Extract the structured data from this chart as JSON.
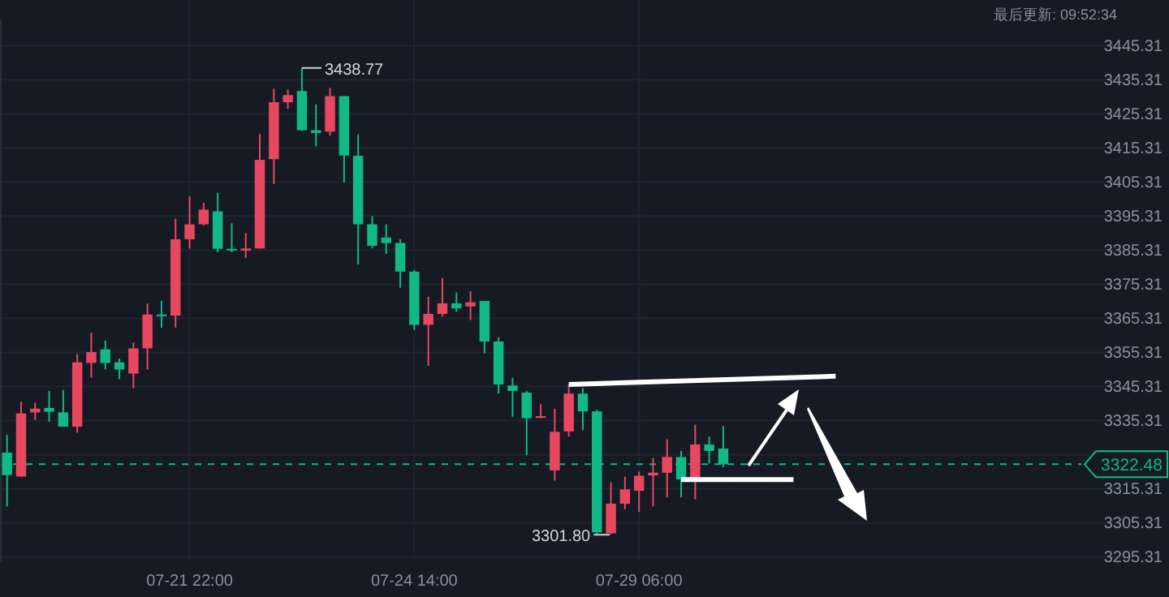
{
  "chart_data": {
    "type": "candlestick",
    "categories": [
      null,
      null,
      null,
      null,
      null,
      null,
      null,
      null,
      null,
      null,
      null,
      null,
      null,
      "07-21 22:00",
      null,
      null,
      null,
      null,
      null,
      null,
      null,
      null,
      null,
      null,
      null,
      null,
      null,
      null,
      null,
      "07-24 14:00",
      null,
      null,
      null,
      null,
      null,
      null,
      null,
      null,
      null,
      null,
      null,
      null,
      null,
      null,
      null,
      "07-29 06:00",
      null,
      null,
      null,
      null,
      null,
      null,
      null,
      null,
      null,
      null,
      null,
      null,
      null,
      null,
      null,
      null,
      null,
      null,
      null,
      null,
      null,
      null,
      null,
      null,
      null,
      null,
      null,
      null,
      null,
      null,
      null,
      null,
      null,
      null
    ],
    "ohlc": [
      [
        3325.9,
        3331.1,
        3310.1,
        3319.3
      ],
      [
        3318.9,
        3340.8,
        3318.8,
        3337.4
      ],
      [
        3337.7,
        3340.6,
        3335.5,
        3338.8
      ],
      [
        3339.0,
        3344.0,
        3334.9,
        3337.9
      ],
      [
        3337.7,
        3344.3,
        3333.5,
        3333.5
      ],
      [
        3333.5,
        3354.8,
        3331.7,
        3352.4
      ],
      [
        3352.2,
        3361.1,
        3347.9,
        3355.4
      ],
      [
        3356.2,
        3358.8,
        3350.3,
        3352.2
      ],
      [
        3352.4,
        3353.5,
        3347.5,
        3350.3
      ],
      [
        3349.1,
        3358.2,
        3344.8,
        3356.5
      ],
      [
        3356.5,
        3369.6,
        3350.3,
        3366.4
      ],
      [
        3366.4,
        3370.4,
        3362.5,
        3365.9
      ],
      [
        3366.1,
        3394.5,
        3362.6,
        3388.5
      ],
      [
        3388.5,
        3401.1,
        3385.8,
        3392.9
      ],
      [
        3392.9,
        3399.2,
        3392.6,
        3397.2
      ],
      [
        3396.7,
        3402.1,
        3384.7,
        3385.7
      ],
      [
        3385.7,
        3393.2,
        3384.7,
        3385.2
      ],
      [
        3385.2,
        3390.3,
        3383.0,
        3385.8
      ],
      [
        3385.8,
        3419.4,
        3385.8,
        3411.8
      ],
      [
        3412.0,
        3432.7,
        3404.7,
        3428.7
      ],
      [
        3428.7,
        3432.4,
        3426.8,
        3430.8
      ],
      [
        3432.0,
        3438.77,
        3420.3,
        3420.5
      ],
      [
        3420.5,
        3428.1,
        3415.8,
        3419.7
      ],
      [
        3420.1,
        3432.9,
        3418.9,
        3430.5
      ],
      [
        3430.5,
        3430.5,
        3405.2,
        3413.1
      ],
      [
        3413.0,
        3419.3,
        3381.1,
        3392.9
      ],
      [
        3392.9,
        3395.3,
        3385.8,
        3386.6
      ],
      [
        3389.0,
        3392.9,
        3384.2,
        3387.4
      ],
      [
        3387.4,
        3388.5,
        3374.3,
        3379.0
      ],
      [
        3379.0,
        3379.5,
        3361.9,
        3363.4
      ],
      [
        3363.4,
        3371.6,
        3351.4,
        3366.6
      ],
      [
        3366.6,
        3377.1,
        3365.8,
        3369.7
      ],
      [
        3369.7,
        3372.9,
        3367.2,
        3368.2
      ],
      [
        3368.8,
        3373.2,
        3364.8,
        3370.0
      ],
      [
        3370.4,
        3370.4,
        3355.0,
        3358.5
      ],
      [
        3358.5,
        3359.8,
        3343.2,
        3345.9
      ],
      [
        3345.6,
        3347.9,
        3336.4,
        3344.0
      ],
      [
        3343.5,
        3344.0,
        3325.1,
        3336.0
      ],
      [
        3336.1,
        3340.1,
        3336.0,
        3336.6
      ],
      [
        3320.7,
        3338.8,
        3317.7,
        3332.0
      ],
      [
        3332.1,
        3345.9,
        3330.6,
        3343.2
      ],
      [
        3343.2,
        3344.8,
        3332.5,
        3338.0
      ],
      [
        3338.0,
        3338.5,
        3301.8,
        3302.5
      ],
      [
        3302.2,
        3317.2,
        3302.0,
        3310.9
      ],
      [
        3310.9,
        3318.8,
        3309.3,
        3315.1
      ],
      [
        3314.7,
        3320.3,
        3308.5,
        3319.1
      ],
      [
        3319.2,
        3324.3,
        3310.1,
        3320.0
      ],
      [
        3320.0,
        3329.8,
        3312.8,
        3324.6
      ],
      [
        3324.6,
        3326.4,
        3312.8,
        3318.0
      ],
      [
        3318.0,
        3334.1,
        3312.2,
        3328.3
      ],
      [
        3328.3,
        3330.6,
        3322.7,
        3326.4
      ],
      [
        3327.1,
        3333.7,
        3321.6,
        3322.48
      ],
      null,
      null,
      null,
      null,
      null,
      null,
      null,
      null,
      null,
      null,
      null,
      null,
      null,
      null,
      null,
      null,
      null,
      null,
      null,
      null,
      null,
      null,
      null,
      null,
      null,
      null,
      null,
      null
    ],
    "colors": [
      "#12b886",
      "#e8485f",
      "#e8485f",
      "#12b886",
      "#12b886",
      "#e8485f",
      "#e8485f",
      "#12b886",
      "#12b886",
      "#e8485f",
      "#e8485f",
      "#12b886",
      "#e8485f",
      "#e8485f",
      "#e8485f",
      "#12b886",
      "#12b886",
      "#e8485f",
      "#e8485f",
      "#e8485f",
      "#e8485f",
      "#12b886",
      "#12b886",
      "#e8485f",
      "#12b886",
      "#12b886",
      "#12b886",
      "#12b886",
      "#12b886",
      "#12b886",
      "#e8485f",
      "#e8485f",
      "#12b886",
      "#e8485f",
      "#12b886",
      "#12b886",
      "#12b886",
      "#12b886",
      "#e8485f",
      "#e8485f",
      "#e8485f",
      "#12b886",
      "#12b886",
      "#e8485f",
      "#e8485f",
      "#e8485f",
      "#e8485f",
      "#e8485f",
      "#12b886",
      "#e8485f",
      "#12b886",
      "#12b886",
      null,
      null,
      null,
      null,
      null,
      null,
      null,
      null,
      null,
      null,
      null,
      null,
      null,
      null,
      null,
      null,
      null,
      null,
      null,
      null,
      null,
      null,
      null,
      null,
      null,
      null,
      null,
      null
    ],
    "ylim": [
      3294,
      3453
    ],
    "yticks": [
      3295.31,
      3305.31,
      3315.31,
      {
        "value": 3325.31,
        "label": null
      },
      3335.31,
      3345.31,
      3355.31,
      3365.31,
      3375.31,
      3385.31,
      3395.31,
      3405.31,
      3415.31,
      3425.31,
      3435.31,
      3445.31
    ],
    "series": [
      {
        "type": "line",
        "color": "#ffffff",
        "values": [
          null,
          null,
          null,
          null,
          null,
          null,
          null,
          null,
          null,
          null,
          null,
          null,
          null,
          null,
          null,
          null,
          null,
          null,
          null,
          null,
          null,
          null,
          null,
          null,
          null,
          null,
          null,
          null,
          null,
          null,
          null,
          null,
          null,
          null,
          null,
          null,
          null,
          null,
          null,
          null,
          3345.9,
          null,
          null,
          null,
          null,
          null,
          null,
          null,
          null,
          null,
          null,
          null,
          null,
          null,
          null,
          null,
          null,
          null,
          null,
          3348.3,
          null,
          null,
          null,
          null,
          null,
          null,
          null,
          null,
          null,
          null,
          null,
          null,
          null,
          null,
          null,
          null,
          null,
          null,
          null,
          null
        ]
      },
      {
        "type": "line",
        "color": "#ffffff",
        "values": [
          null,
          null,
          null,
          null,
          null,
          null,
          null,
          null,
          null,
          null,
          null,
          null,
          null,
          null,
          null,
          null,
          null,
          null,
          null,
          null,
          null,
          null,
          null,
          null,
          null,
          null,
          null,
          null,
          null,
          null,
          null,
          null,
          null,
          null,
          null,
          null,
          null,
          null,
          null,
          null,
          null,
          null,
          null,
          null,
          null,
          null,
          null,
          null,
          3318.0,
          null,
          null,
          null,
          null,
          null,
          null,
          null,
          3318.0,
          null,
          null,
          null,
          null,
          null,
          null,
          null,
          null,
          null,
          null,
          null,
          null,
          null,
          null,
          null,
          null,
          null,
          null,
          null,
          null,
          null,
          null,
          null
        ]
      }
    ],
    "grid": true,
    "ref_lines": [
      {
        "axis": "y",
        "value": 3322.48,
        "label": "3322.48",
        "color": "#12b886",
        "line_style": "dashed"
      }
    ],
    "annotations": [
      "3438.77",
      "3301.80",
      "最后更新: 09:52:34"
    ]
  }
}
